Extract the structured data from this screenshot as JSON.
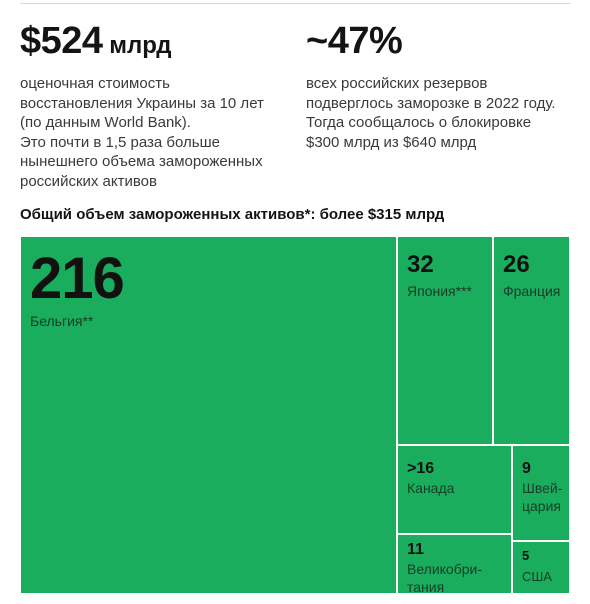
{
  "stats": [
    {
      "value": "$524",
      "unit": " млрд",
      "lines": [
        "оценочная стоимость",
        "восстановления Украины за 10 лет",
        "(по данным World Bank).",
        "Это почти в 1,5 раза больше",
        "нынешнего объема замороженных",
        "российских активов"
      ]
    },
    {
      "value": "~47%",
      "unit": "",
      "lines": [
        "всех российских резервов",
        "подверглось заморозке в 2022 году.",
        "Тогда сообщалось о блокировке",
        "$300 млрд из $640 млрд"
      ]
    }
  ],
  "chart_data": {
    "type": "treemap",
    "title": "Общий объем замороженных активов*: более $315 млрд",
    "units": "млрд $",
    "color": "#1aad5e",
    "items": [
      {
        "value": 216,
        "value_label": "216",
        "label_lines": [
          "Бельгия**"
        ]
      },
      {
        "value": 32,
        "value_label": "32",
        "label_lines": [
          "Япония***"
        ]
      },
      {
        "value": 26,
        "value_label": "26",
        "label_lines": [
          "Франция"
        ]
      },
      {
        "value": 16,
        "value_label": ">16",
        "label_lines": [
          "Канада"
        ]
      },
      {
        "value": 9,
        "value_label": "9",
        "label_lines": [
          "Швей-",
          "цария"
        ]
      },
      {
        "value": 11,
        "value_label": "11",
        "label_lines": [
          "Великобри-",
          "тания"
        ]
      },
      {
        "value": 5,
        "value_label": "5",
        "label_lines": [
          "США"
        ]
      }
    ]
  }
}
